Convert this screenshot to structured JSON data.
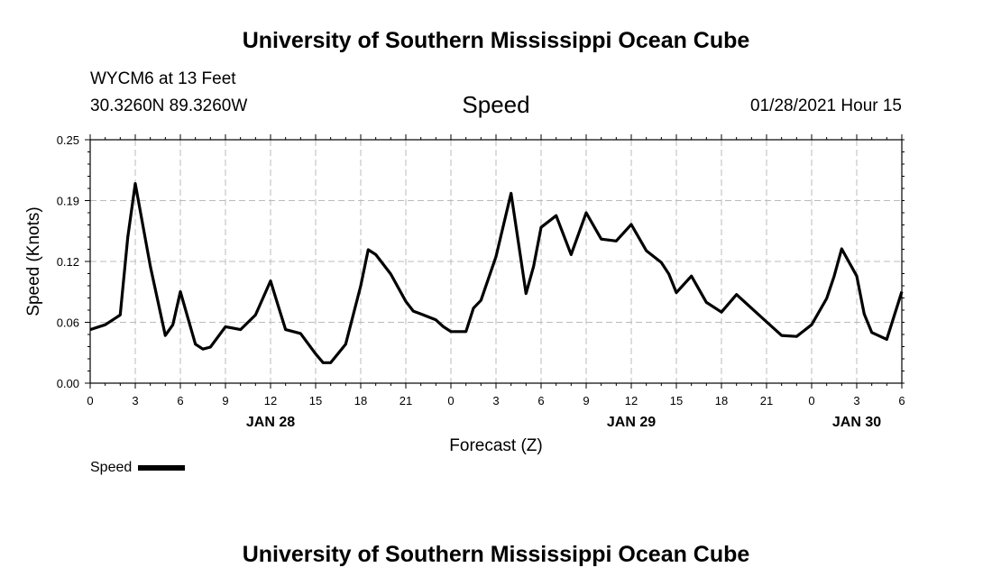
{
  "header": {
    "title_top": "University of Southern Mississippi Ocean Cube",
    "station": "WYCM6 at 13 Feet",
    "coords": "30.3260N 89.3260W",
    "variable": "Speed",
    "datetime": "01/28/2021 Hour 15"
  },
  "footer": {
    "title_bottom": "University of Southern Mississippi Ocean Cube"
  },
  "legend": {
    "label": "Speed",
    "color": "#000000"
  },
  "chart_data": {
    "type": "line",
    "title": "Speed",
    "xlabel": "Forecast (Z)",
    "ylabel": "Speed (Knots)",
    "ylim": [
      0,
      0.25
    ],
    "yticks": [
      "0.00",
      "0.06",
      "0.12",
      "0.19",
      "0.25"
    ],
    "ytick_values": [
      0,
      0.0625,
      0.125,
      0.1875,
      0.25
    ],
    "xlim": [
      0,
      54
    ],
    "xtick_labels": [
      "0",
      "3",
      "6",
      "9",
      "12",
      "15",
      "18",
      "21",
      "0",
      "3",
      "6",
      "9",
      "12",
      "15",
      "18",
      "21",
      "0",
      "3",
      "6"
    ],
    "date_labels": [
      {
        "label": "JAN 28",
        "hour": 12
      },
      {
        "label": "JAN 29",
        "hour": 36
      },
      {
        "label": "JAN 30",
        "hour": 51
      }
    ],
    "grid": true,
    "legend_position": "bottom-left",
    "series": [
      {
        "name": "Speed",
        "color": "#000000",
        "x": [
          0,
          1,
          2,
          2.5,
          3,
          4,
          5,
          5.5,
          6,
          7,
          7.5,
          8,
          9,
          10,
          11,
          12,
          12.5,
          13,
          14,
          15,
          15.5,
          16,
          17,
          18,
          18.5,
          19,
          20,
          21,
          21.5,
          22,
          23,
          23.5,
          24,
          25,
          25.5,
          26,
          27,
          28,
          29,
          29.5,
          30,
          31,
          32,
          33,
          34,
          35,
          36,
          37,
          38,
          38.5,
          39,
          40,
          41,
          42,
          43,
          44,
          45,
          46,
          47,
          48,
          49,
          49.5,
          50,
          51,
          51.5,
          52,
          53,
          54
        ],
        "y": [
          0.055,
          0.06,
          0.07,
          0.15,
          0.205,
          0.12,
          0.049,
          0.06,
          0.094,
          0.04,
          0.035,
          0.037,
          0.058,
          0.055,
          0.07,
          0.105,
          0.08,
          0.055,
          0.051,
          0.03,
          0.021,
          0.021,
          0.04,
          0.1,
          0.137,
          0.132,
          0.112,
          0.084,
          0.074,
          0.071,
          0.065,
          0.058,
          0.053,
          0.053,
          0.077,
          0.085,
          0.13,
          0.195,
          0.092,
          0.12,
          0.16,
          0.172,
          0.132,
          0.175,
          0.148,
          0.146,
          0.163,
          0.136,
          0.124,
          0.112,
          0.093,
          0.11,
          0.083,
          0.073,
          0.091,
          0.077,
          0.063,
          0.049,
          0.048,
          0.06,
          0.087,
          0.11,
          0.138,
          0.11,
          0.071,
          0.052,
          0.045,
          0.094
        ]
      }
    ]
  }
}
